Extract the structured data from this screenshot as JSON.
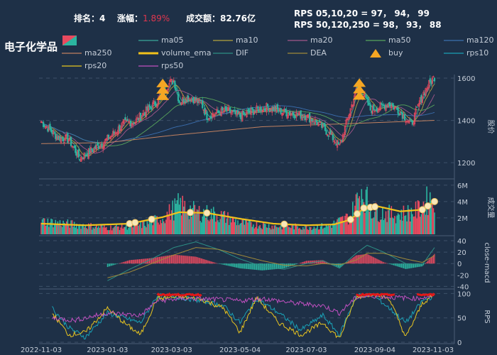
{
  "header": {
    "rank_label": "排名：",
    "rank_value": "4",
    "change_label": "涨幅：",
    "change_value": "1.89%",
    "turnover_label": "成交额：",
    "turnover_value": "82.76亿",
    "rps_line1": "RPS 05,10,20 = 97， 94， 99",
    "rps_line2": "RPS 50,120,250 = 98， 93， 88"
  },
  "title": "电子化学品",
  "legend": [
    {
      "name": "ma05",
      "color": "#3aa89a",
      "type": "line"
    },
    {
      "name": "ma10",
      "color": "#b5a33c",
      "type": "line"
    },
    {
      "name": "ma20",
      "color": "#a2568a",
      "type": "line"
    },
    {
      "name": "ma50",
      "color": "#58a55c",
      "type": "line"
    },
    {
      "name": "ma120",
      "color": "#3b6fb0",
      "type": "line"
    },
    {
      "name": "ma250",
      "color": "#c08060",
      "type": "line"
    },
    {
      "name": "volume_ema",
      "color": "#f2c21b",
      "type": "thick"
    },
    {
      "name": "DIF",
      "color": "#2d8f85",
      "type": "line"
    },
    {
      "name": "DEA",
      "color": "#a08a3a",
      "type": "line"
    },
    {
      "name": "buy",
      "color": "#f5a623",
      "type": "triangle"
    },
    {
      "name": "rps10",
      "color": "#1aa0b5",
      "type": "line"
    },
    {
      "name": "rps20",
      "color": "#e8c520",
      "type": "line"
    },
    {
      "name": "rps50",
      "color": "#c050c0",
      "type": "line"
    }
  ],
  "colors": {
    "up": "#e84a5f",
    "down": "#2bb5a0",
    "grid": "#3d5068",
    "axis": "#8a98aa",
    "buy": "#f5a623",
    "rps_highlight": "#e01818"
  },
  "chart_data": {
    "type": "candlestick",
    "x_tick_labels": [
      "2022-11-03",
      "2023-01-03",
      "2023-03-03",
      "2023-05-04",
      "2023-07-03",
      "2023-09-04",
      "2023-11-03"
    ],
    "price_panel": {
      "ylabel": "股价",
      "yticks": [
        1200,
        1400,
        1600
      ],
      "ylim": [
        1130,
        1610
      ],
      "close_keypoints": [
        [
          0,
          1395
        ],
        [
          15,
          1320
        ],
        [
          25,
          1310
        ],
        [
          35,
          1220
        ],
        [
          40,
          1240
        ],
        [
          55,
          1290
        ],
        [
          65,
          1335
        ],
        [
          75,
          1385
        ],
        [
          85,
          1395
        ],
        [
          95,
          1445
        ],
        [
          105,
          1490
        ],
        [
          115,
          1570
        ],
        [
          120,
          1590
        ],
        [
          125,
          1490
        ],
        [
          135,
          1510
        ],
        [
          145,
          1480
        ],
        [
          150,
          1420
        ],
        [
          158,
          1435
        ],
        [
          168,
          1445
        ],
        [
          180,
          1420
        ],
        [
          192,
          1445
        ],
        [
          205,
          1465
        ],
        [
          218,
          1440
        ],
        [
          230,
          1430
        ],
        [
          240,
          1420
        ],
        [
          250,
          1390
        ],
        [
          262,
          1330
        ],
        [
          270,
          1275
        ],
        [
          278,
          1420
        ],
        [
          285,
          1540
        ],
        [
          292,
          1520
        ],
        [
          298,
          1450
        ],
        [
          305,
          1460
        ],
        [
          315,
          1480
        ],
        [
          325,
          1440
        ],
        [
          335,
          1380
        ],
        [
          345,
          1520
        ],
        [
          352,
          1580
        ],
        [
          356,
          1605
        ]
      ],
      "buy_signal_days": [
        110,
        288
      ],
      "ma250_keypoints": [
        [
          0,
          1290
        ],
        [
          60,
          1295
        ],
        [
          120,
          1330
        ],
        [
          200,
          1370
        ],
        [
          280,
          1385
        ],
        [
          356,
          1400
        ]
      ]
    },
    "volume_panel": {
      "ylabel": "成交量",
      "yticks": [
        "2M",
        "4M",
        "6M"
      ],
      "ylim": [
        0,
        6500000
      ],
      "volume_keypoints_millions": [
        [
          0,
          1.6
        ],
        [
          30,
          1.2
        ],
        [
          60,
          0.8
        ],
        [
          90,
          1.1
        ],
        [
          110,
          2.0
        ],
        [
          125,
          3.6
        ],
        [
          140,
          2.7
        ],
        [
          160,
          2.4
        ],
        [
          180,
          1.4
        ],
        [
          210,
          1.0
        ],
        [
          240,
          0.9
        ],
        [
          260,
          1.0
        ],
        [
          280,
          2.2
        ],
        [
          290,
          5.5
        ],
        [
          300,
          2.8
        ],
        [
          320,
          2.4
        ],
        [
          340,
          2.8
        ],
        [
          350,
          4.2
        ],
        [
          356,
          4.6
        ]
      ],
      "ema_keypoints_millions": [
        [
          0,
          1.3
        ],
        [
          40,
          1.1
        ],
        [
          80,
          1.3
        ],
        [
          110,
          2.1
        ],
        [
          125,
          2.7
        ],
        [
          150,
          2.6
        ],
        [
          180,
          1.9
        ],
        [
          210,
          1.3
        ],
        [
          240,
          1.1
        ],
        [
          265,
          1.2
        ],
        [
          280,
          1.8
        ],
        [
          292,
          3.2
        ],
        [
          305,
          3.4
        ],
        [
          325,
          2.8
        ],
        [
          345,
          3.0
        ],
        [
          356,
          4.0
        ]
      ],
      "markers_days": [
        80,
        85,
        100,
        135,
        150,
        220,
        280,
        286,
        292,
        298,
        302,
        345,
        350,
        356
      ]
    },
    "macd_panel": {
      "ylabel": "close-macd",
      "yticks": [
        40,
        20,
        0,
        -20,
        -40
      ],
      "ylim": [
        -42,
        45
      ],
      "dif_keypoints": [
        [
          60,
          -30
        ],
        [
          80,
          -10
        ],
        [
          100,
          8
        ],
        [
          120,
          28
        ],
        [
          140,
          38
        ],
        [
          160,
          25
        ],
        [
          180,
          8
        ],
        [
          200,
          -5
        ],
        [
          220,
          -10
        ],
        [
          240,
          0
        ],
        [
          255,
          5
        ],
        [
          270,
          -8
        ],
        [
          285,
          18
        ],
        [
          295,
          32
        ],
        [
          310,
          20
        ],
        [
          330,
          0
        ],
        [
          345,
          -2
        ],
        [
          356,
          28
        ]
      ],
      "dea_keypoints": [
        [
          60,
          -25
        ],
        [
          80,
          -15
        ],
        [
          100,
          0
        ],
        [
          120,
          15
        ],
        [
          140,
          28
        ],
        [
          160,
          25
        ],
        [
          180,
          15
        ],
        [
          200,
          5
        ],
        [
          220,
          -3
        ],
        [
          240,
          -4
        ],
        [
          255,
          0
        ],
        [
          270,
          -2
        ],
        [
          285,
          6
        ],
        [
          295,
          18
        ],
        [
          310,
          18
        ],
        [
          330,
          8
        ],
        [
          345,
          2
        ],
        [
          356,
          14
        ]
      ]
    },
    "rps_panel": {
      "ylabel": "RPS",
      "yticks": [
        0,
        50,
        100
      ],
      "ylim": [
        0,
        105
      ],
      "rps10_keypoints": [
        [
          10,
          70
        ],
        [
          25,
          30
        ],
        [
          40,
          10
        ],
        [
          60,
          60
        ],
        [
          75,
          50
        ],
        [
          90,
          40
        ],
        [
          105,
          95
        ],
        [
          125,
          92
        ],
        [
          145,
          85
        ],
        [
          165,
          75
        ],
        [
          180,
          40
        ],
        [
          195,
          90
        ],
        [
          215,
          60
        ],
        [
          235,
          25
        ],
        [
          255,
          55
        ],
        [
          270,
          15
        ],
        [
          285,
          95
        ],
        [
          300,
          98
        ],
        [
          315,
          70
        ],
        [
          330,
          40
        ],
        [
          345,
          85
        ],
        [
          356,
          95
        ]
      ],
      "rps20_keypoints": [
        [
          10,
          60
        ],
        [
          25,
          15
        ],
        [
          40,
          20
        ],
        [
          60,
          70
        ],
        [
          75,
          40
        ],
        [
          90,
          15
        ],
        [
          105,
          90
        ],
        [
          125,
          93
        ],
        [
          145,
          88
        ],
        [
          165,
          70
        ],
        [
          180,
          20
        ],
        [
          195,
          92
        ],
        [
          215,
          40
        ],
        [
          235,
          15
        ],
        [
          255,
          40
        ],
        [
          270,
          8
        ],
        [
          285,
          92
        ],
        [
          300,
          100
        ],
        [
          315,
          90
        ],
        [
          330,
          10
        ],
        [
          345,
          80
        ],
        [
          356,
          98
        ]
      ],
      "rps50_keypoints": [
        [
          10,
          50
        ],
        [
          30,
          45
        ],
        [
          60,
          60
        ],
        [
          90,
          55
        ],
        [
          105,
          85
        ],
        [
          130,
          90
        ],
        [
          160,
          88
        ],
        [
          180,
          85
        ],
        [
          200,
          90
        ],
        [
          230,
          80
        ],
        [
          255,
          75
        ],
        [
          270,
          60
        ],
        [
          285,
          92
        ],
        [
          300,
          95
        ],
        [
          320,
          92
        ],
        [
          340,
          90
        ],
        [
          356,
          96
        ]
      ]
    }
  }
}
